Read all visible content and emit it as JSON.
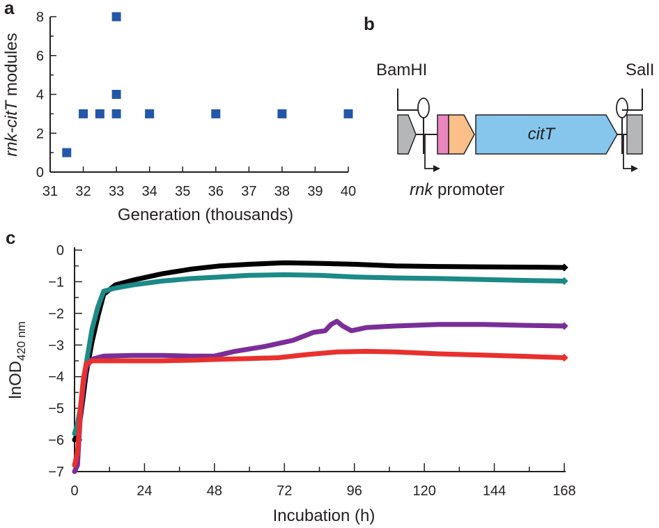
{
  "panels": {
    "a": "a",
    "b": "b",
    "c": "c"
  },
  "chart_data": [
    {
      "panel": "a",
      "type": "scatter",
      "xlabel": "Generation (thousands)",
      "ylabel": {
        "italic": "rnk-citT",
        "rest": " modules"
      },
      "xlim": [
        31,
        40
      ],
      "ylim": [
        0,
        8
      ],
      "xticks": [
        31,
        32,
        33,
        34,
        35,
        36,
        37,
        38,
        39,
        40
      ],
      "yticks": [
        0,
        2,
        4,
        6,
        8
      ],
      "marker_color": "#2357a8",
      "marker": "square",
      "grid": false,
      "points": [
        {
          "x": 31.5,
          "y": 1
        },
        {
          "x": 32,
          "y": 3
        },
        {
          "x": 32.5,
          "y": 3
        },
        {
          "x": 33,
          "y": 3
        },
        {
          "x": 33,
          "y": 4
        },
        {
          "x": 33,
          "y": 8
        },
        {
          "x": 34,
          "y": 3
        },
        {
          "x": 36,
          "y": 3
        },
        {
          "x": 38,
          "y": 3
        },
        {
          "x": 40,
          "y": 3
        }
      ]
    },
    {
      "panel": "c",
      "type": "line",
      "xlabel": "Incubation (h)",
      "ylabel": {
        "main": "lnOD",
        "sub": "420 nm"
      },
      "xlim": [
        0,
        168
      ],
      "ylim": [
        -7,
        0
      ],
      "xticks": [
        0,
        24,
        48,
        72,
        96,
        120,
        144,
        168
      ],
      "yticks": [
        0,
        -1,
        -2,
        -3,
        -4,
        -5,
        -6,
        -7
      ],
      "ytick_labels": [
        "0",
        "−1",
        "−2",
        "−3",
        "−4",
        "−5",
        "−6",
        "−7"
      ],
      "grid": false,
      "series": [
        {
          "color": "#000000",
          "x": [
            0,
            1,
            2,
            3,
            4,
            6,
            8,
            10,
            14,
            20,
            30,
            40,
            50,
            60,
            72,
            84,
            96,
            110,
            125,
            140,
            155,
            168
          ],
          "y": [
            -6.0,
            -5.8,
            -5.3,
            -4.6,
            -3.9,
            -2.9,
            -2.1,
            -1.4,
            -1.1,
            -0.95,
            -0.75,
            -0.6,
            -0.5,
            -0.45,
            -0.4,
            -0.42,
            -0.45,
            -0.5,
            -0.52,
            -0.53,
            -0.54,
            -0.55
          ]
        },
        {
          "color": "#1c8a87",
          "x": [
            0,
            1,
            2,
            3,
            4,
            6,
            8,
            10,
            14,
            20,
            30,
            40,
            50,
            60,
            72,
            84,
            96,
            110,
            125,
            140,
            155,
            168
          ],
          "y": [
            -5.8,
            -5.5,
            -5.0,
            -4.3,
            -3.6,
            -2.5,
            -1.8,
            -1.3,
            -1.2,
            -1.1,
            -0.98,
            -0.9,
            -0.85,
            -0.8,
            -0.78,
            -0.8,
            -0.85,
            -0.88,
            -0.9,
            -0.93,
            -0.96,
            -0.98
          ]
        },
        {
          "color": "#7a2e98",
          "x": [
            0,
            1,
            1.5,
            2,
            3,
            4,
            6,
            10,
            20,
            30,
            40,
            48,
            55,
            65,
            75,
            82,
            86,
            88,
            90,
            92,
            95,
            100,
            110,
            125,
            140,
            155,
            168
          ],
          "y": [
            -7.0,
            -6.8,
            -6.0,
            -5.2,
            -4.3,
            -3.7,
            -3.45,
            -3.35,
            -3.33,
            -3.33,
            -3.35,
            -3.35,
            -3.2,
            -3.05,
            -2.85,
            -2.6,
            -2.55,
            -2.35,
            -2.25,
            -2.4,
            -2.55,
            -2.45,
            -2.4,
            -2.35,
            -2.35,
            -2.38,
            -2.4
          ]
        },
        {
          "color": "#e8312e",
          "x": [
            0,
            1,
            1.5,
            2,
            3,
            4,
            6,
            10,
            20,
            30,
            40,
            50,
            60,
            70,
            80,
            90,
            100,
            110,
            125,
            140,
            155,
            168
          ],
          "y": [
            -6.8,
            -6.4,
            -5.8,
            -5.0,
            -4.1,
            -3.6,
            -3.5,
            -3.5,
            -3.5,
            -3.5,
            -3.48,
            -3.45,
            -3.43,
            -3.4,
            -3.3,
            -3.22,
            -3.2,
            -3.22,
            -3.28,
            -3.32,
            -3.36,
            -3.4
          ]
        }
      ]
    }
  ],
  "diagram_b": {
    "left_site": "BamHI",
    "right_site": "SalI",
    "gene_label": "citT",
    "promoter_label": {
      "italic": "rnk",
      "rest": " promoter"
    },
    "colors": {
      "gray_block": "#b5b6b8",
      "pink_block": "#e986c0",
      "orange_block": "#fbbf8a",
      "gene_block": "#86c6ec",
      "outline": "#231f20"
    }
  }
}
